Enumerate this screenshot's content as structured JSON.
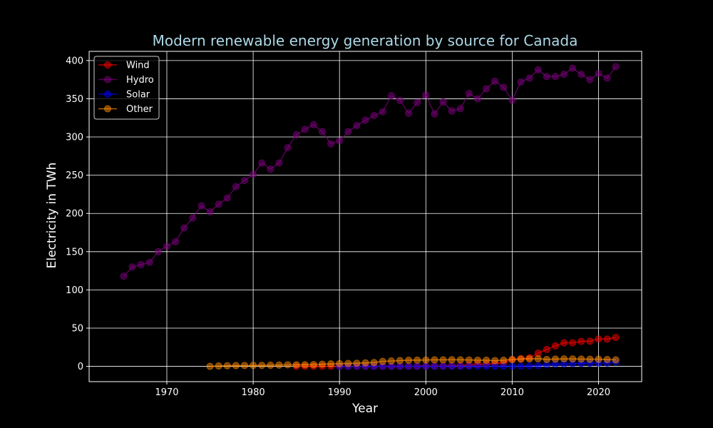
{
  "chart_data": {
    "type": "line",
    "title": "Modern renewable energy generation by source for Canada",
    "xlabel": "Year",
    "ylabel": "Electricity in TWh",
    "xlim": [
      1961,
      2025
    ],
    "ylim": [
      -20,
      412
    ],
    "x_ticks": [
      1970,
      1980,
      1990,
      2000,
      2010,
      2020
    ],
    "y_ticks": [
      0,
      50,
      100,
      150,
      200,
      250,
      300,
      350,
      400
    ],
    "grid": true,
    "legend_position": "top-left",
    "colors": {
      "background": "#000000",
      "title": "#add8e6",
      "text": "#ffffff",
      "grid": "#ffffff"
    },
    "series": [
      {
        "name": "Wind",
        "color": "#ff0000",
        "x": [
          1985,
          1986,
          1987,
          1988,
          1989,
          1990,
          1991,
          1992,
          1993,
          1994,
          1995,
          1996,
          1997,
          1998,
          1999,
          2000,
          2001,
          2002,
          2003,
          2004,
          2005,
          2006,
          2007,
          2008,
          2009,
          2010,
          2011,
          2012,
          2013,
          2014,
          2015,
          2016,
          2017,
          2018,
          2019,
          2020,
          2021,
          2022
        ],
        "y": [
          0,
          0,
          0,
          0,
          0,
          0,
          0,
          0,
          0,
          0,
          0,
          0,
          0,
          0,
          0,
          0.3,
          0.3,
          0.4,
          0.8,
          0.9,
          1.5,
          2.5,
          2.9,
          3.8,
          4.6,
          8.7,
          10.1,
          11.3,
          17.2,
          22.1,
          26.8,
          30.7,
          30.8,
          32.7,
          32.8,
          35.8,
          35.6,
          37.8
        ]
      },
      {
        "name": "Hydro",
        "color": "#800080",
        "x": [
          1965,
          1966,
          1967,
          1968,
          1969,
          1970,
          1971,
          1972,
          1973,
          1974,
          1975,
          1976,
          1977,
          1978,
          1979,
          1980,
          1981,
          1982,
          1983,
          1984,
          1985,
          1986,
          1987,
          1988,
          1989,
          1990,
          1991,
          1992,
          1993,
          1994,
          1995,
          1996,
          1997,
          1998,
          1999,
          2000,
          2001,
          2002,
          2003,
          2004,
          2005,
          2006,
          2007,
          2008,
          2009,
          2010,
          2011,
          2012,
          2013,
          2014,
          2015,
          2016,
          2017,
          2018,
          2019,
          2020,
          2021,
          2022
        ],
        "y": [
          118,
          130,
          133,
          136,
          150,
          157,
          163,
          181,
          194,
          210,
          202,
          212,
          220,
          235,
          243,
          251,
          266,
          258,
          266,
          286,
          303,
          310,
          316,
          307,
          291,
          295,
          307,
          315,
          322,
          328,
          333,
          354,
          348,
          331,
          345,
          355,
          330,
          346,
          334,
          337,
          357,
          350,
          363,
          373,
          365,
          348,
          372,
          377,
          388,
          379,
          379,
          382,
          390,
          382,
          375,
          383,
          377,
          392
        ],
        "trend_to": {
          "x": 2022,
          "y": 392
        }
      },
      {
        "name": "Solar",
        "color": "#0000ff",
        "x": [
          1990,
          1991,
          1992,
          1993,
          1994,
          1995,
          1996,
          1997,
          1998,
          1999,
          2000,
          2001,
          2002,
          2003,
          2004,
          2005,
          2006,
          2007,
          2008,
          2009,
          2010,
          2011,
          2012,
          2013,
          2014,
          2015,
          2016,
          2017,
          2018,
          2019,
          2020,
          2021,
          2022
        ],
        "y": [
          0,
          0,
          0,
          0,
          0,
          0,
          0,
          0,
          0,
          0,
          0,
          0,
          0,
          0,
          0,
          0,
          0,
          0,
          0,
          0.1,
          0.2,
          0.3,
          0.5,
          1.0,
          2.0,
          2.9,
          3.2,
          3.6,
          3.8,
          4.0,
          4.2,
          4.4,
          5.5
        ]
      },
      {
        "name": "Other",
        "color": "#ff8c00",
        "x": [
          1975,
          1976,
          1977,
          1978,
          1979,
          1980,
          1981,
          1982,
          1983,
          1984,
          1985,
          1986,
          1987,
          1988,
          1989,
          1990,
          1991,
          1992,
          1993,
          1994,
          1995,
          1996,
          1997,
          1998,
          1999,
          2000,
          2001,
          2002,
          2003,
          2004,
          2005,
          2006,
          2007,
          2008,
          2009,
          2010,
          2011,
          2012,
          2013,
          2014,
          2015,
          2016,
          2017,
          2018,
          2019,
          2020,
          2021,
          2022
        ],
        "y": [
          0,
          0.5,
          0.8,
          1.0,
          1.1,
          1.2,
          1.3,
          1.5,
          1.7,
          2.0,
          2.0,
          2.1,
          2.3,
          2.8,
          3.2,
          3.5,
          3.8,
          4.1,
          4.5,
          5.0,
          6.5,
          7.0,
          7.5,
          8.0,
          8.1,
          8.3,
          8.5,
          8.5,
          8.6,
          8.5,
          8.3,
          8.0,
          8.0,
          7.5,
          8.0,
          9.0,
          9.5,
          9.8,
          10.0,
          9.0,
          9.5,
          9.8,
          9.7,
          9.5,
          9.3,
          9.3,
          9.0,
          8.5
        ]
      }
    ]
  }
}
